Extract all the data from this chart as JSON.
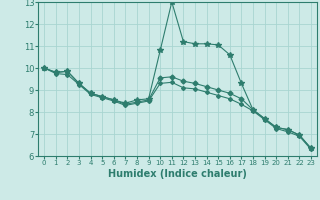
{
  "title": "",
  "xlabel": "Humidex (Indice chaleur)",
  "ylabel": "",
  "xlim": [
    -0.5,
    23.5
  ],
  "ylim": [
    6,
    13
  ],
  "yticks": [
    6,
    7,
    8,
    9,
    10,
    11,
    12,
    13
  ],
  "xticks": [
    0,
    1,
    2,
    3,
    4,
    5,
    6,
    7,
    8,
    9,
    10,
    11,
    12,
    13,
    14,
    15,
    16,
    17,
    18,
    19,
    20,
    21,
    22,
    23
  ],
  "bg_color": "#cdeae7",
  "grid_color": "#a8d5d1",
  "line_color": "#2e7d6e",
  "series": [
    {
      "x": [
        0,
        1,
        2,
        3,
        4,
        5,
        6,
        7,
        8,
        9,
        10,
        11,
        12,
        13,
        14,
        15,
        16,
        17,
        18,
        19,
        20,
        21,
        22,
        23
      ],
      "y": [
        10.0,
        9.8,
        9.85,
        9.3,
        8.85,
        8.7,
        8.55,
        8.4,
        8.55,
        8.6,
        10.8,
        13.0,
        11.2,
        11.1,
        11.1,
        11.05,
        10.6,
        9.3,
        8.1,
        7.7,
        7.3,
        7.2,
        6.95,
        6.35
      ],
      "marker": "*",
      "markersize": 4
    },
    {
      "x": [
        0,
        1,
        2,
        3,
        4,
        5,
        6,
        7,
        8,
        9,
        10,
        11,
        12,
        13,
        14,
        15,
        16,
        17,
        18,
        19,
        20,
        21,
        22,
        23
      ],
      "y": [
        10.0,
        9.8,
        9.85,
        9.3,
        8.85,
        8.7,
        8.55,
        8.35,
        8.45,
        8.55,
        9.55,
        9.6,
        9.4,
        9.3,
        9.15,
        9.0,
        8.85,
        8.6,
        8.1,
        7.7,
        7.3,
        7.2,
        6.95,
        6.35
      ],
      "marker": "D",
      "markersize": 2.5
    },
    {
      "x": [
        0,
        1,
        2,
        3,
        4,
        5,
        6,
        7,
        8,
        9,
        10,
        11,
        12,
        13,
        14,
        15,
        16,
        17,
        18,
        19,
        20,
        21,
        22,
        23
      ],
      "y": [
        10.0,
        9.75,
        9.7,
        9.25,
        8.8,
        8.65,
        8.5,
        8.3,
        8.4,
        8.5,
        9.3,
        9.35,
        9.1,
        9.05,
        8.9,
        8.75,
        8.6,
        8.35,
        8.05,
        7.65,
        7.25,
        7.1,
        6.9,
        6.3
      ],
      "marker": "D",
      "markersize": 2
    }
  ],
  "tick_fontsize": 6,
  "xlabel_fontsize": 7,
  "xlabel_fontweight": "bold",
  "linewidth": 0.8
}
